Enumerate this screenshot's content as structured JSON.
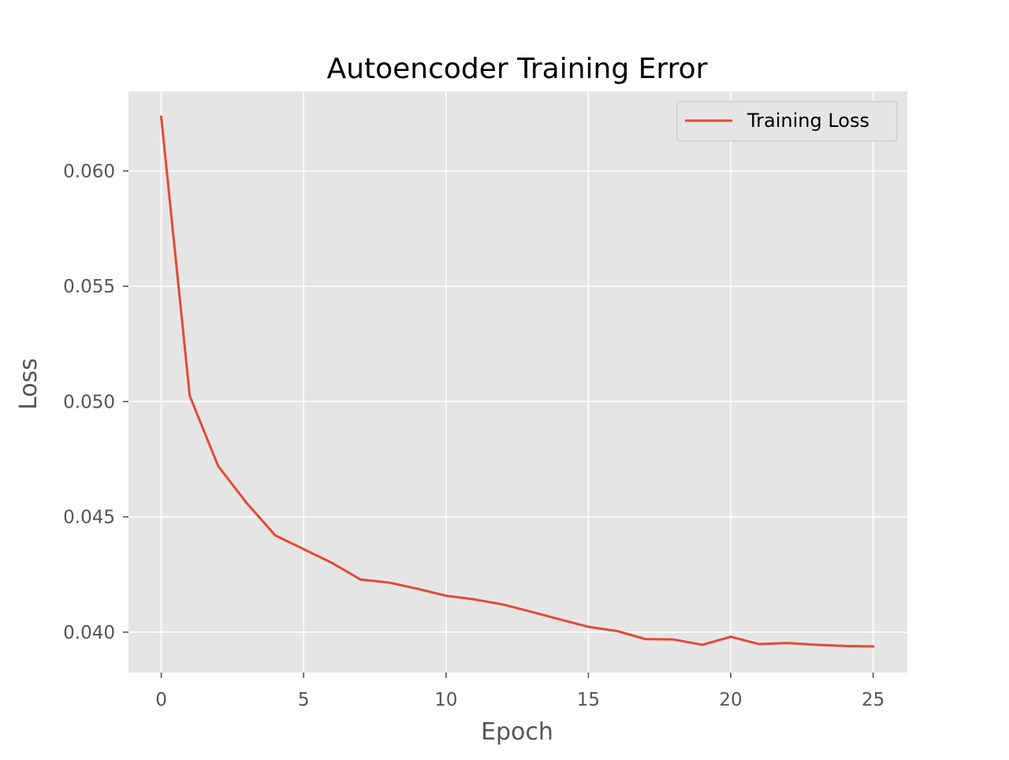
{
  "chart_data": {
    "type": "line",
    "title": "Autoencoder Training Error",
    "xlabel": "Epoch",
    "ylabel": "Loss",
    "xlim": [
      -1.15,
      26.2
    ],
    "ylim": [
      0.03825,
      0.06345
    ],
    "xticks": [
      0,
      5,
      10,
      15,
      20,
      25
    ],
    "xtick_labels": [
      "0",
      "5",
      "10",
      "15",
      "20",
      "25"
    ],
    "yticks": [
      0.04,
      0.045,
      0.05,
      0.055,
      0.06
    ],
    "ytick_labels": [
      "0.040",
      "0.045",
      "0.050",
      "0.055",
      "0.060"
    ],
    "grid": true,
    "legend_position": "top-right",
    "series": [
      {
        "name": "Training Loss",
        "color": "#E24A33",
        "x": [
          0,
          1,
          2,
          3,
          4,
          5,
          6,
          7,
          8,
          9,
          10,
          11,
          12,
          13,
          14,
          15,
          16,
          17,
          18,
          19,
          20,
          21,
          22,
          23,
          24,
          25
        ],
        "values": [
          0.06235,
          0.05025,
          0.0472,
          0.0456,
          0.0442,
          0.0436,
          0.043,
          0.04228,
          0.04215,
          0.04188,
          0.04158,
          0.04142,
          0.0412,
          0.04088,
          0.04055,
          0.04023,
          0.04005,
          0.0397,
          0.03968,
          0.03945,
          0.0398,
          0.03948,
          0.03953,
          0.03945,
          0.0394,
          0.03938
        ]
      }
    ]
  },
  "colors": {
    "plot_background": "#E5E5E5",
    "grid": "#FFFFFF",
    "line": "#E24A33"
  }
}
